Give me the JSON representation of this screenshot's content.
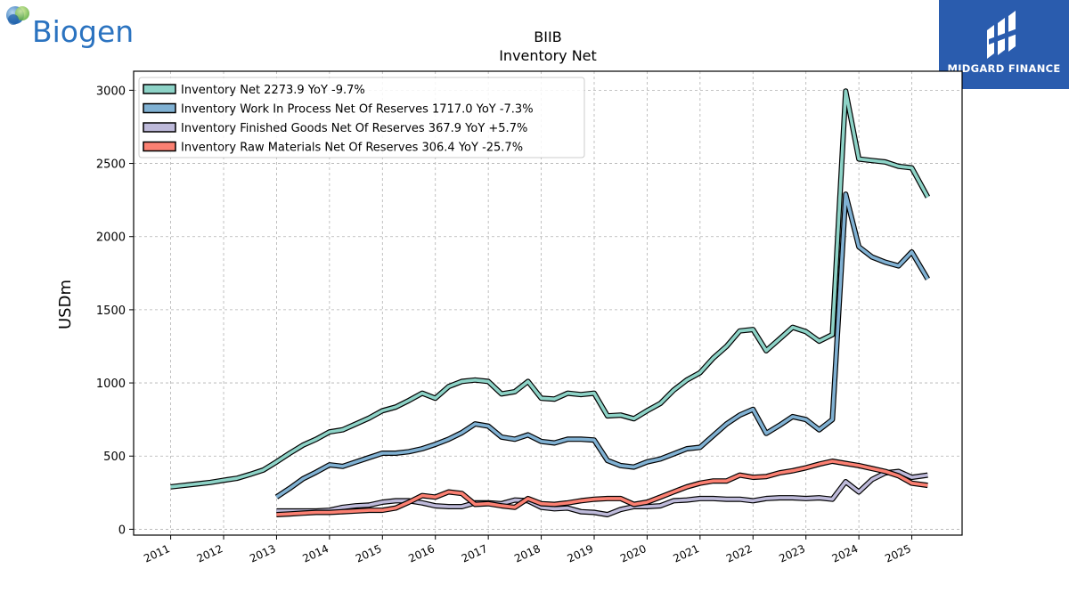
{
  "logos": {
    "left_text": "Biogen",
    "right_text": "MIDGARD FINANCE"
  },
  "chart_data": {
    "type": "line",
    "title": "BIIB",
    "subtitle": "Inventory Net",
    "ylabel": "USDm",
    "xlabel": "",
    "xlim": [
      2010.3,
      2025.95
    ],
    "ylim": [
      -40,
      3130
    ],
    "yticks": [
      0,
      500,
      1000,
      1500,
      2000,
      2500,
      3000
    ],
    "xticks": [
      2011,
      2012,
      2013,
      2014,
      2015,
      2016,
      2017,
      2018,
      2019,
      2020,
      2021,
      2022,
      2023,
      2024,
      2025
    ],
    "xtick_labels": [
      "2011",
      "2012",
      "2013",
      "2014",
      "2015",
      "2016",
      "2017",
      "2018",
      "2019",
      "2020",
      "2021",
      "2022",
      "2023",
      "2024",
      "2025"
    ],
    "grid": true,
    "legend_position": "top-left",
    "series": [
      {
        "name": "Inventory Net",
        "legend": "Inventory Net  2273.9 YoY -9.7%",
        "color": "#8dd3c7",
        "points": [
          [
            2011.0,
            290
          ],
          [
            2011.5,
            310
          ],
          [
            2011.75,
            320
          ],
          [
            2012.0,
            335
          ],
          [
            2012.25,
            348
          ],
          [
            2012.5,
            375
          ],
          [
            2012.75,
            405
          ],
          [
            2013.0,
            460
          ],
          [
            2013.25,
            520
          ],
          [
            2013.5,
            575
          ],
          [
            2013.75,
            615
          ],
          [
            2014.0,
            665
          ],
          [
            2014.25,
            680
          ],
          [
            2014.5,
            720
          ],
          [
            2014.75,
            760
          ],
          [
            2015.0,
            810
          ],
          [
            2015.25,
            835
          ],
          [
            2015.5,
            880
          ],
          [
            2015.75,
            930
          ],
          [
            2016.0,
            895
          ],
          [
            2016.25,
            975
          ],
          [
            2016.5,
            1010
          ],
          [
            2016.75,
            1020
          ],
          [
            2017.0,
            1010
          ],
          [
            2017.25,
            925
          ],
          [
            2017.5,
            940
          ],
          [
            2017.75,
            1010
          ],
          [
            2018.0,
            895
          ],
          [
            2018.25,
            890
          ],
          [
            2018.5,
            930
          ],
          [
            2018.75,
            920
          ],
          [
            2019.0,
            930
          ],
          [
            2019.25,
            775
          ],
          [
            2019.5,
            780
          ],
          [
            2019.75,
            755
          ],
          [
            2020.0,
            810
          ],
          [
            2020.25,
            860
          ],
          [
            2020.5,
            950
          ],
          [
            2020.75,
            1020
          ],
          [
            2021.0,
            1070
          ],
          [
            2021.25,
            1170
          ],
          [
            2021.5,
            1250
          ],
          [
            2021.75,
            1355
          ],
          [
            2022.0,
            1365
          ],
          [
            2022.25,
            1220
          ],
          [
            2022.5,
            1300
          ],
          [
            2022.75,
            1380
          ],
          [
            2023.0,
            1350
          ],
          [
            2023.25,
            1285
          ],
          [
            2023.5,
            1330
          ],
          [
            2023.75,
            2995
          ],
          [
            2024.0,
            2530
          ],
          [
            2024.25,
            2520
          ],
          [
            2024.5,
            2510
          ],
          [
            2024.75,
            2480
          ],
          [
            2025.0,
            2470
          ],
          [
            2025.3,
            2270
          ]
        ]
      },
      {
        "name": "Inventory Work In Process Net Of Reserves",
        "legend": "Inventory Work In Process Net Of Reserves  1717.0 YoY -7.3%",
        "color": "#80b1d3",
        "points": [
          [
            2013.0,
            220
          ],
          [
            2013.25,
            280
          ],
          [
            2013.5,
            345
          ],
          [
            2013.75,
            390
          ],
          [
            2014.0,
            440
          ],
          [
            2014.25,
            430
          ],
          [
            2014.5,
            460
          ],
          [
            2014.75,
            490
          ],
          [
            2015.0,
            520
          ],
          [
            2015.25,
            520
          ],
          [
            2015.5,
            530
          ],
          [
            2015.75,
            550
          ],
          [
            2016.0,
            580
          ],
          [
            2016.25,
            615
          ],
          [
            2016.5,
            660
          ],
          [
            2016.75,
            720
          ],
          [
            2017.0,
            705
          ],
          [
            2017.25,
            630
          ],
          [
            2017.5,
            615
          ],
          [
            2017.75,
            645
          ],
          [
            2018.0,
            600
          ],
          [
            2018.25,
            590
          ],
          [
            2018.5,
            615
          ],
          [
            2018.75,
            615
          ],
          [
            2019.0,
            610
          ],
          [
            2019.25,
            470
          ],
          [
            2019.5,
            435
          ],
          [
            2019.75,
            425
          ],
          [
            2020.0,
            460
          ],
          [
            2020.25,
            480
          ],
          [
            2020.5,
            515
          ],
          [
            2020.75,
            550
          ],
          [
            2021.0,
            560
          ],
          [
            2021.25,
            640
          ],
          [
            2021.5,
            720
          ],
          [
            2021.75,
            780
          ],
          [
            2022.0,
            820
          ],
          [
            2022.25,
            655
          ],
          [
            2022.5,
            710
          ],
          [
            2022.75,
            770
          ],
          [
            2023.0,
            750
          ],
          [
            2023.25,
            680
          ],
          [
            2023.5,
            750
          ],
          [
            2023.75,
            2290
          ],
          [
            2024.0,
            1930
          ],
          [
            2024.25,
            1860
          ],
          [
            2024.5,
            1825
          ],
          [
            2024.75,
            1800
          ],
          [
            2025.0,
            1895
          ],
          [
            2025.3,
            1710
          ]
        ]
      },
      {
        "name": "Inventory Finished Goods Net Of Reserves",
        "legend": "Inventory Finished Goods Net Of Reserves  367.9 YoY +5.7%",
        "color": "#bebada",
        "points": [
          [
            2013.0,
            125
          ],
          [
            2013.25,
            125
          ],
          [
            2013.5,
            125
          ],
          [
            2013.75,
            125
          ],
          [
            2014.0,
            130
          ],
          [
            2014.25,
            150
          ],
          [
            2014.5,
            160
          ],
          [
            2014.75,
            165
          ],
          [
            2015.0,
            185
          ],
          [
            2015.25,
            195
          ],
          [
            2015.5,
            195
          ],
          [
            2015.75,
            180
          ],
          [
            2016.0,
            160
          ],
          [
            2016.25,
            155
          ],
          [
            2016.5,
            155
          ],
          [
            2016.75,
            180
          ],
          [
            2017.0,
            180
          ],
          [
            2017.25,
            175
          ],
          [
            2017.5,
            200
          ],
          [
            2017.75,
            195
          ],
          [
            2018.0,
            150
          ],
          [
            2018.25,
            140
          ],
          [
            2018.5,
            145
          ],
          [
            2018.75,
            120
          ],
          [
            2019.0,
            115
          ],
          [
            2019.25,
            100
          ],
          [
            2019.5,
            135
          ],
          [
            2019.75,
            155
          ],
          [
            2020.0,
            155
          ],
          [
            2020.25,
            160
          ],
          [
            2020.5,
            195
          ],
          [
            2020.75,
            200
          ],
          [
            2021.0,
            210
          ],
          [
            2021.25,
            210
          ],
          [
            2021.5,
            205
          ],
          [
            2021.75,
            205
          ],
          [
            2022.0,
            195
          ],
          [
            2022.25,
            210
          ],
          [
            2022.5,
            215
          ],
          [
            2022.75,
            215
          ],
          [
            2023.0,
            210
          ],
          [
            2023.25,
            215
          ],
          [
            2023.5,
            205
          ],
          [
            2023.75,
            325
          ],
          [
            2024.0,
            255
          ],
          [
            2024.25,
            340
          ],
          [
            2024.5,
            385
          ],
          [
            2024.75,
            395
          ],
          [
            2025.0,
            355
          ],
          [
            2025.3,
            370
          ]
        ]
      },
      {
        "name": "Inventory Raw Materials Net Of Reserves",
        "legend": "Inventory Raw Materials Net Of Reserves  306.4 YoY -25.7%",
        "color": "#fb8072",
        "points": [
          [
            2013.0,
            100
          ],
          [
            2013.25,
            105
          ],
          [
            2013.5,
            110
          ],
          [
            2013.75,
            115
          ],
          [
            2014.0,
            115
          ],
          [
            2014.25,
            120
          ],
          [
            2014.5,
            125
          ],
          [
            2014.75,
            130
          ],
          [
            2015.0,
            130
          ],
          [
            2015.25,
            145
          ],
          [
            2015.5,
            185
          ],
          [
            2015.75,
            230
          ],
          [
            2016.0,
            220
          ],
          [
            2016.25,
            255
          ],
          [
            2016.5,
            245
          ],
          [
            2016.75,
            170
          ],
          [
            2017.0,
            175
          ],
          [
            2017.25,
            160
          ],
          [
            2017.5,
            150
          ],
          [
            2017.75,
            210
          ],
          [
            2018.0,
            175
          ],
          [
            2018.25,
            170
          ],
          [
            2018.5,
            180
          ],
          [
            2018.75,
            195
          ],
          [
            2019.0,
            205
          ],
          [
            2019.25,
            210
          ],
          [
            2019.5,
            210
          ],
          [
            2019.75,
            170
          ],
          [
            2020.0,
            185
          ],
          [
            2020.25,
            220
          ],
          [
            2020.5,
            255
          ],
          [
            2020.75,
            290
          ],
          [
            2021.0,
            315
          ],
          [
            2021.25,
            330
          ],
          [
            2021.5,
            330
          ],
          [
            2021.75,
            370
          ],
          [
            2022.0,
            355
          ],
          [
            2022.25,
            360
          ],
          [
            2022.5,
            385
          ],
          [
            2022.75,
            400
          ],
          [
            2023.0,
            420
          ],
          [
            2023.25,
            445
          ],
          [
            2023.5,
            465
          ],
          [
            2023.75,
            450
          ],
          [
            2024.0,
            435
          ],
          [
            2024.25,
            415
          ],
          [
            2024.5,
            395
          ],
          [
            2024.75,
            365
          ],
          [
            2025.0,
            315
          ],
          [
            2025.3,
            300
          ]
        ]
      }
    ]
  }
}
